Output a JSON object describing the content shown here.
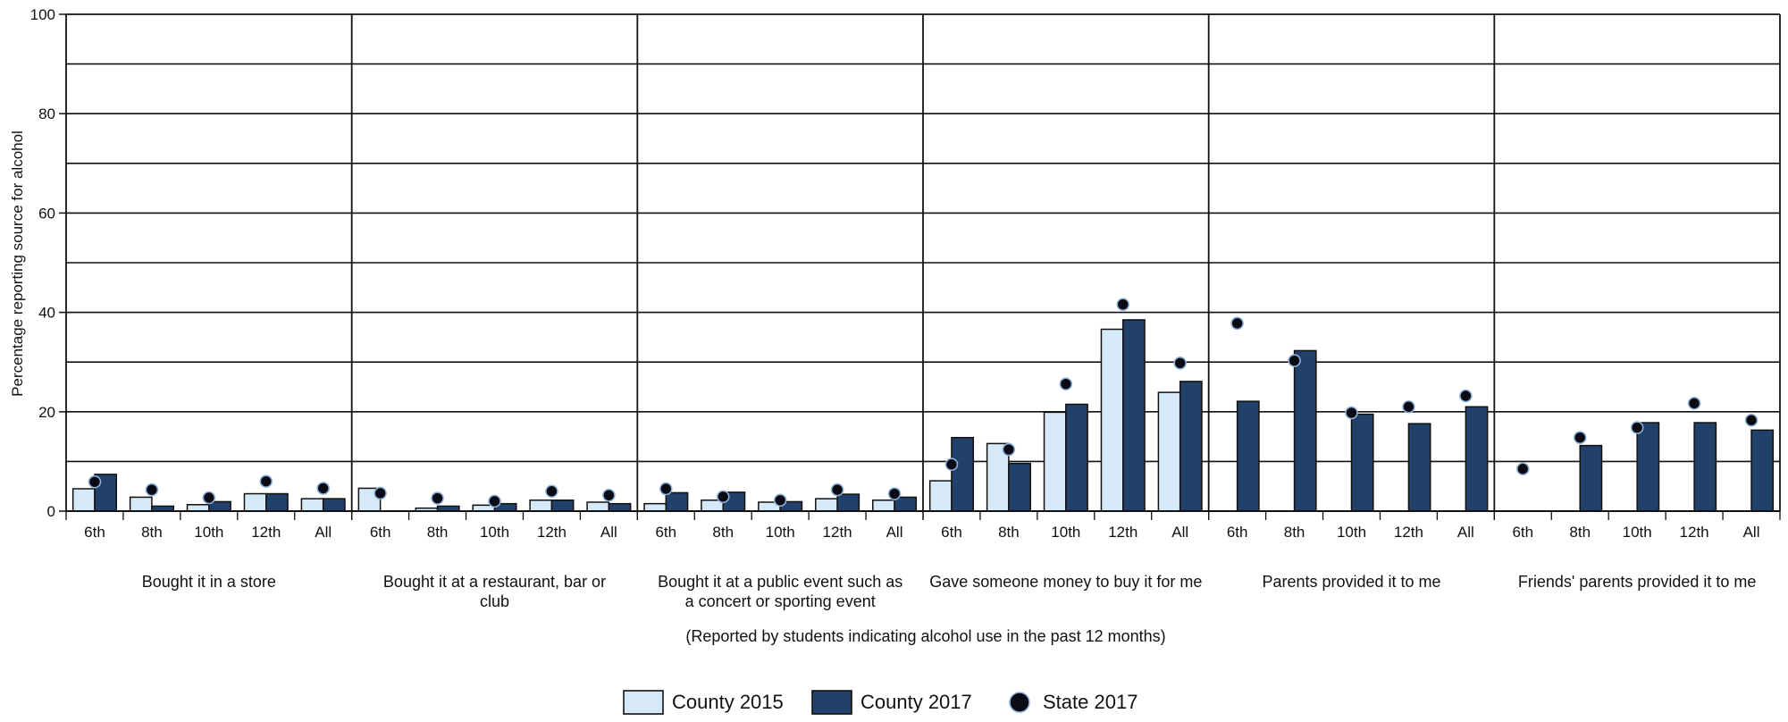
{
  "chart_data": {
    "type": "bar",
    "ylabel": "Percentage reporting source for alcohol",
    "xlabel": "(Reported by students indicating alcohol use in the past 12 months)",
    "ylim": [
      0,
      100
    ],
    "yticks": [
      0,
      20,
      40,
      60,
      80,
      100
    ],
    "grid": true,
    "legend_position": "bottom-center",
    "subcategories": [
      "6th",
      "8th",
      "10th",
      "12th",
      "All"
    ],
    "groups": [
      "Bought it in a store",
      "Bought it at a restaurant, bar or club",
      "Bought it at a public event such as a concert or sporting event",
      "Gave someone money to buy it for me",
      "Parents provided it to me",
      "Friends' parents provided it to me"
    ],
    "series": [
      {
        "name": "County 2015",
        "kind": "bar",
        "color": "#d6e9f8",
        "values": [
          [
            4.5,
            2.8,
            1.3,
            3.5,
            2.5
          ],
          [
            4.6,
            0.6,
            1.2,
            2.2,
            1.8
          ],
          [
            1.5,
            2.2,
            1.8,
            2.5,
            2.2
          ],
          [
            6.1,
            13.6,
            19.9,
            36.6,
            23.9
          ],
          [
            0,
            0,
            0,
            0,
            0
          ],
          [
            0,
            0,
            0,
            0,
            0
          ]
        ]
      },
      {
        "name": "County 2017",
        "kind": "bar",
        "color": "#22416a",
        "values": [
          [
            7.4,
            1.0,
            1.9,
            3.5,
            2.5
          ],
          [
            0,
            1.0,
            1.5,
            2.2,
            1.5
          ],
          [
            3.7,
            3.8,
            1.9,
            3.4,
            2.8
          ],
          [
            14.8,
            9.6,
            21.5,
            38.5,
            26.1
          ],
          [
            22.1,
            32.3,
            19.5,
            17.6,
            21.0
          ],
          [
            0,
            13.2,
            17.8,
            17.8,
            16.3
          ]
        ]
      },
      {
        "name": "State 2017",
        "kind": "dot",
        "color": "#0a0a14",
        "values": [
          [
            5.9,
            4.3,
            2.7,
            6.0,
            4.6
          ],
          [
            3.6,
            2.6,
            2.0,
            4.0,
            3.2
          ],
          [
            4.5,
            2.9,
            2.2,
            4.3,
            3.5
          ],
          [
            9.4,
            12.4,
            25.6,
            41.6,
            29.8
          ],
          [
            37.8,
            30.3,
            19.8,
            21.0,
            23.2
          ],
          [
            8.5,
            14.8,
            16.8,
            21.7,
            18.3
          ]
        ]
      }
    ]
  }
}
